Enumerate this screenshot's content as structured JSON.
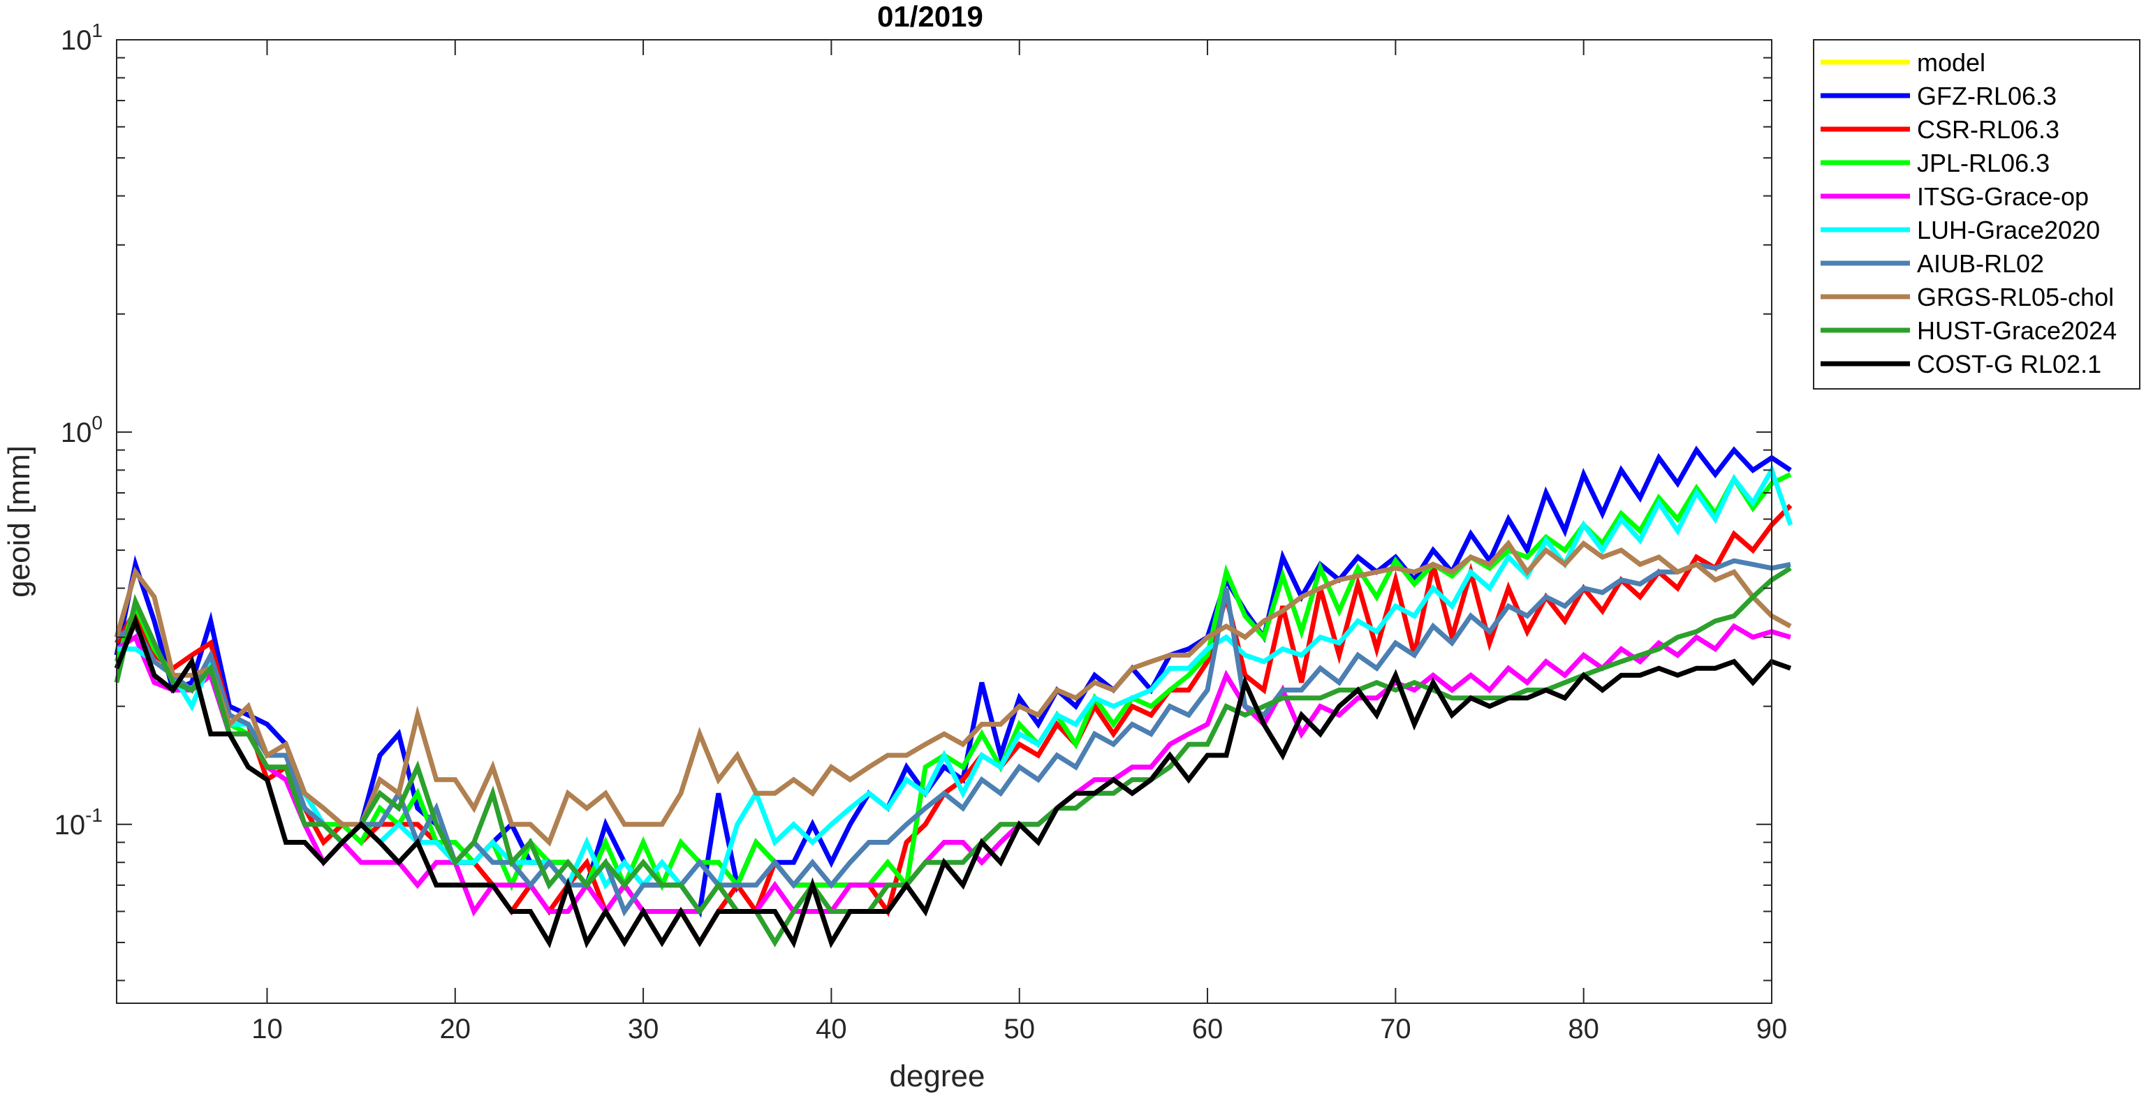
{
  "chart_data": {
    "type": "line",
    "title": "01/2019",
    "xlabel": "degree",
    "ylabel": "geoid [mm]",
    "xlim": [
      2,
      90
    ],
    "ylim": [
      0.035,
      10
    ],
    "yscale": "log",
    "xticks": [
      10,
      20,
      30,
      40,
      50,
      60,
      70,
      80,
      90
    ],
    "yticks": [
      {
        "value": 0.1,
        "base": "10",
        "exp": "-1"
      },
      {
        "value": 1,
        "base": "10",
        "exp": "0"
      },
      {
        "value": 10,
        "base": "10",
        "exp": "1"
      }
    ],
    "grid": false,
    "legend_position": "outside-top-right",
    "x_start": 2,
    "series": [
      {
        "name": "model",
        "color": "#ffff00",
        "values": []
      },
      {
        "name": "GFZ-RL06.3",
        "color": "#0000ff",
        "values": [
          0.27,
          0.46,
          0.33,
          0.22,
          0.23,
          0.33,
          0.2,
          0.19,
          0.18,
          0.16,
          0.12,
          0.1,
          0.09,
          0.1,
          0.15,
          0.17,
          0.11,
          0.1,
          0.08,
          0.08,
          0.09,
          0.1,
          0.08,
          0.08,
          0.08,
          0.07,
          0.1,
          0.08,
          0.07,
          0.07,
          0.07,
          0.06,
          0.12,
          0.07,
          0.09,
          0.08,
          0.08,
          0.1,
          0.08,
          0.1,
          0.12,
          0.11,
          0.14,
          0.12,
          0.14,
          0.13,
          0.23,
          0.15,
          0.21,
          0.18,
          0.22,
          0.2,
          0.24,
          0.22,
          0.25,
          0.22,
          0.27,
          0.28,
          0.3,
          0.42,
          0.35,
          0.3,
          0.48,
          0.38,
          0.46,
          0.42,
          0.48,
          0.44,
          0.48,
          0.42,
          0.5,
          0.44,
          0.55,
          0.47,
          0.6,
          0.5,
          0.7,
          0.56,
          0.78,
          0.62,
          0.8,
          0.68,
          0.86,
          0.74,
          0.9,
          0.78,
          0.9,
          0.8,
          0.86,
          0.8
        ]
      },
      {
        "name": "CSR-RL06.3",
        "color": "#ff0000",
        "values": [
          0.29,
          0.35,
          0.27,
          0.25,
          0.27,
          0.29,
          0.19,
          0.18,
          0.13,
          0.14,
          0.11,
          0.09,
          0.1,
          0.09,
          0.1,
          0.1,
          0.1,
          0.09,
          0.08,
          0.08,
          0.07,
          0.06,
          0.07,
          0.06,
          0.07,
          0.08,
          0.06,
          0.07,
          0.06,
          0.06,
          0.06,
          0.05,
          0.06,
          0.07,
          0.06,
          0.08,
          0.07,
          0.07,
          0.07,
          0.07,
          0.07,
          0.06,
          0.09,
          0.1,
          0.12,
          0.13,
          0.15,
          0.14,
          0.16,
          0.15,
          0.18,
          0.16,
          0.2,
          0.17,
          0.2,
          0.19,
          0.22,
          0.22,
          0.26,
          0.38,
          0.24,
          0.22,
          0.36,
          0.23,
          0.4,
          0.27,
          0.41,
          0.28,
          0.42,
          0.27,
          0.46,
          0.3,
          0.44,
          0.29,
          0.4,
          0.31,
          0.38,
          0.33,
          0.4,
          0.35,
          0.42,
          0.38,
          0.44,
          0.4,
          0.48,
          0.45,
          0.55,
          0.5,
          0.58,
          0.65
        ]
      },
      {
        "name": "JPL-RL06.3",
        "color": "#00ff00",
        "values": [
          0.26,
          0.36,
          0.28,
          0.24,
          0.22,
          0.26,
          0.18,
          0.17,
          0.14,
          0.14,
          0.11,
          0.1,
          0.1,
          0.09,
          0.11,
          0.1,
          0.12,
          0.09,
          0.09,
          0.08,
          0.09,
          0.07,
          0.09,
          0.08,
          0.08,
          0.07,
          0.09,
          0.07,
          0.09,
          0.07,
          0.09,
          0.08,
          0.08,
          0.07,
          0.09,
          0.08,
          0.07,
          0.07,
          0.07,
          0.07,
          0.07,
          0.08,
          0.07,
          0.14,
          0.15,
          0.14,
          0.17,
          0.14,
          0.18,
          0.16,
          0.19,
          0.16,
          0.21,
          0.18,
          0.21,
          0.2,
          0.22,
          0.24,
          0.27,
          0.44,
          0.34,
          0.3,
          0.43,
          0.31,
          0.45,
          0.35,
          0.45,
          0.38,
          0.47,
          0.41,
          0.46,
          0.43,
          0.48,
          0.45,
          0.5,
          0.48,
          0.54,
          0.5,
          0.58,
          0.52,
          0.62,
          0.56,
          0.68,
          0.6,
          0.72,
          0.62,
          0.76,
          0.64,
          0.74,
          0.78
        ]
      },
      {
        "name": "ITSG-Grace-op",
        "color": "#ff00ff",
        "values": [
          0.28,
          0.3,
          0.23,
          0.22,
          0.22,
          0.24,
          0.17,
          0.17,
          0.14,
          0.13,
          0.1,
          0.08,
          0.09,
          0.08,
          0.08,
          0.08,
          0.07,
          0.08,
          0.08,
          0.06,
          0.07,
          0.07,
          0.07,
          0.06,
          0.06,
          0.07,
          0.06,
          0.07,
          0.06,
          0.06,
          0.06,
          0.06,
          0.07,
          0.06,
          0.06,
          0.07,
          0.06,
          0.06,
          0.06,
          0.07,
          0.07,
          0.07,
          0.07,
          0.08,
          0.09,
          0.09,
          0.08,
          0.09,
          0.1,
          0.1,
          0.11,
          0.12,
          0.13,
          0.13,
          0.14,
          0.14,
          0.16,
          0.17,
          0.18,
          0.24,
          0.2,
          0.18,
          0.22,
          0.17,
          0.2,
          0.19,
          0.21,
          0.21,
          0.23,
          0.22,
          0.24,
          0.22,
          0.24,
          0.22,
          0.25,
          0.23,
          0.26,
          0.24,
          0.27,
          0.25,
          0.28,
          0.26,
          0.29,
          0.27,
          0.3,
          0.28,
          0.32,
          0.3,
          0.31,
          0.3
        ]
      },
      {
        "name": "LUH-Grace2020",
        "color": "#00ffff",
        "values": [
          0.28,
          0.28,
          0.26,
          0.24,
          0.2,
          0.26,
          0.18,
          0.18,
          0.15,
          0.15,
          0.12,
          0.1,
          0.09,
          0.1,
          0.09,
          0.1,
          0.09,
          0.09,
          0.08,
          0.08,
          0.09,
          0.08,
          0.08,
          0.08,
          0.07,
          0.09,
          0.07,
          0.08,
          0.07,
          0.08,
          0.07,
          0.08,
          0.07,
          0.1,
          0.12,
          0.09,
          0.1,
          0.09,
          0.1,
          0.11,
          0.12,
          0.11,
          0.13,
          0.12,
          0.15,
          0.12,
          0.15,
          0.14,
          0.17,
          0.16,
          0.19,
          0.18,
          0.21,
          0.2,
          0.21,
          0.22,
          0.25,
          0.25,
          0.28,
          0.3,
          0.27,
          0.26,
          0.28,
          0.27,
          0.3,
          0.29,
          0.33,
          0.31,
          0.36,
          0.34,
          0.4,
          0.36,
          0.44,
          0.4,
          0.48,
          0.43,
          0.53,
          0.46,
          0.58,
          0.5,
          0.6,
          0.53,
          0.66,
          0.56,
          0.7,
          0.6,
          0.76,
          0.66,
          0.8,
          0.58
        ]
      },
      {
        "name": "AIUB-RL02",
        "color": "#4c7fb2",
        "values": [
          0.3,
          0.32,
          0.26,
          0.24,
          0.22,
          0.27,
          0.19,
          0.18,
          0.15,
          0.15,
          0.11,
          0.1,
          0.09,
          0.1,
          0.1,
          0.12,
          0.09,
          0.11,
          0.08,
          0.09,
          0.08,
          0.08,
          0.07,
          0.08,
          0.07,
          0.07,
          0.08,
          0.06,
          0.07,
          0.07,
          0.07,
          0.08,
          0.07,
          0.07,
          0.07,
          0.08,
          0.07,
          0.08,
          0.07,
          0.08,
          0.09,
          0.09,
          0.1,
          0.11,
          0.12,
          0.11,
          0.13,
          0.12,
          0.14,
          0.13,
          0.15,
          0.14,
          0.17,
          0.16,
          0.18,
          0.17,
          0.2,
          0.19,
          0.22,
          0.4,
          0.2,
          0.19,
          0.22,
          0.22,
          0.25,
          0.23,
          0.27,
          0.25,
          0.29,
          0.27,
          0.32,
          0.29,
          0.34,
          0.31,
          0.36,
          0.34,
          0.38,
          0.36,
          0.4,
          0.39,
          0.42,
          0.41,
          0.44,
          0.44,
          0.46,
          0.45,
          0.47,
          0.46,
          0.45,
          0.46
        ]
      },
      {
        "name": "GRGS-RL05-chol",
        "color": "#b08050",
        "values": [
          0.3,
          0.44,
          0.38,
          0.24,
          0.24,
          0.25,
          0.18,
          0.2,
          0.15,
          0.16,
          0.12,
          0.11,
          0.1,
          0.1,
          0.13,
          0.12,
          0.19,
          0.13,
          0.13,
          0.11,
          0.14,
          0.1,
          0.1,
          0.09,
          0.12,
          0.11,
          0.12,
          0.1,
          0.1,
          0.1,
          0.12,
          0.17,
          0.13,
          0.15,
          0.12,
          0.12,
          0.13,
          0.12,
          0.14,
          0.13,
          0.14,
          0.15,
          0.15,
          0.16,
          0.17,
          0.16,
          0.18,
          0.18,
          0.2,
          0.19,
          0.22,
          0.21,
          0.23,
          0.22,
          0.25,
          0.26,
          0.27,
          0.27,
          0.3,
          0.32,
          0.3,
          0.33,
          0.35,
          0.38,
          0.4,
          0.42,
          0.43,
          0.44,
          0.45,
          0.44,
          0.46,
          0.44,
          0.48,
          0.46,
          0.52,
          0.44,
          0.5,
          0.46,
          0.52,
          0.48,
          0.5,
          0.46,
          0.48,
          0.44,
          0.46,
          0.42,
          0.44,
          0.38,
          0.34,
          0.32
        ]
      },
      {
        "name": "HUST-Grace2024",
        "color": "#2ca02c",
        "values": [
          0.23,
          0.37,
          0.29,
          0.23,
          0.22,
          0.25,
          0.17,
          0.17,
          0.14,
          0.14,
          0.1,
          0.1,
          0.09,
          0.1,
          0.12,
          0.11,
          0.14,
          0.1,
          0.08,
          0.09,
          0.12,
          0.08,
          0.09,
          0.07,
          0.08,
          0.07,
          0.08,
          0.07,
          0.08,
          0.07,
          0.07,
          0.06,
          0.07,
          0.06,
          0.06,
          0.05,
          0.06,
          0.07,
          0.06,
          0.06,
          0.06,
          0.07,
          0.07,
          0.08,
          0.08,
          0.08,
          0.09,
          0.1,
          0.1,
          0.1,
          0.11,
          0.11,
          0.12,
          0.12,
          0.13,
          0.13,
          0.14,
          0.16,
          0.16,
          0.2,
          0.19,
          0.2,
          0.21,
          0.21,
          0.21,
          0.22,
          0.22,
          0.23,
          0.22,
          0.23,
          0.22,
          0.21,
          0.21,
          0.21,
          0.21,
          0.22,
          0.22,
          0.23,
          0.24,
          0.25,
          0.26,
          0.27,
          0.28,
          0.3,
          0.31,
          0.33,
          0.34,
          0.38,
          0.42,
          0.45
        ]
      },
      {
        "name": "COST-G RL02.1",
        "color": "#000000",
        "values": [
          0.25,
          0.33,
          0.24,
          0.22,
          0.26,
          0.17,
          0.17,
          0.14,
          0.13,
          0.09,
          0.09,
          0.08,
          0.09,
          0.1,
          0.09,
          0.08,
          0.09,
          0.07,
          0.07,
          0.07,
          0.07,
          0.06,
          0.06,
          0.05,
          0.07,
          0.05,
          0.06,
          0.05,
          0.06,
          0.05,
          0.06,
          0.05,
          0.06,
          0.06,
          0.06,
          0.06,
          0.05,
          0.07,
          0.05,
          0.06,
          0.06,
          0.06,
          0.07,
          0.06,
          0.08,
          0.07,
          0.09,
          0.08,
          0.1,
          0.09,
          0.11,
          0.12,
          0.12,
          0.13,
          0.12,
          0.13,
          0.15,
          0.13,
          0.15,
          0.15,
          0.23,
          0.18,
          0.15,
          0.19,
          0.17,
          0.2,
          0.22,
          0.19,
          0.24,
          0.18,
          0.23,
          0.19,
          0.21,
          0.2,
          0.21,
          0.21,
          0.22,
          0.21,
          0.24,
          0.22,
          0.24,
          0.24,
          0.25,
          0.24,
          0.25,
          0.25,
          0.26,
          0.23,
          0.26,
          0.25
        ]
      }
    ]
  }
}
